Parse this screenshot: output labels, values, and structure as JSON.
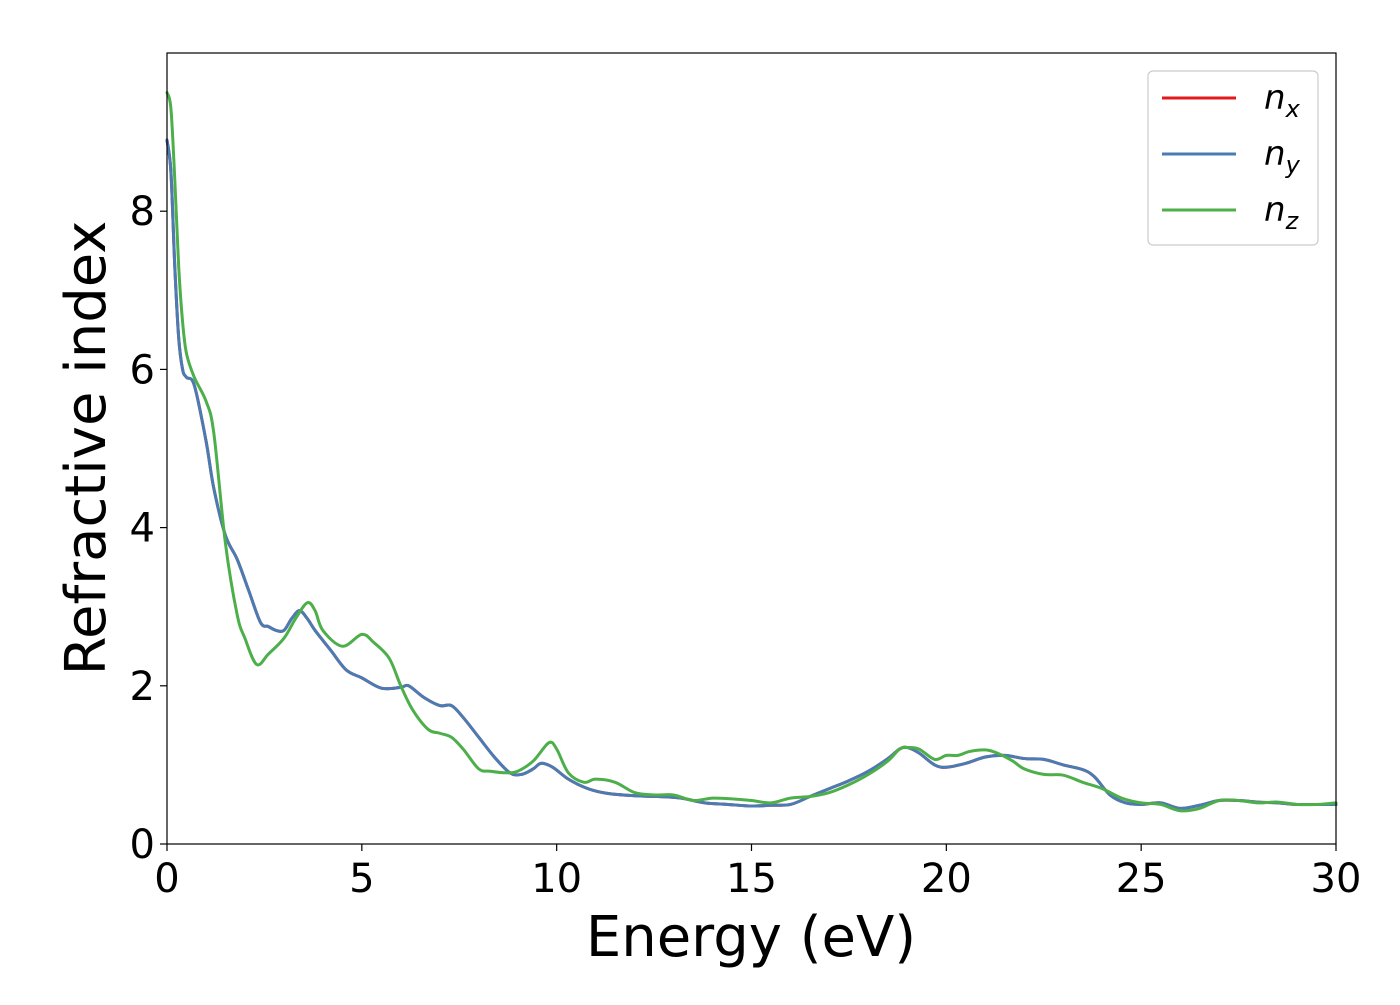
{
  "chart_data": {
    "type": "line",
    "xlabel": "Energy (eV)",
    "ylabel": "Refractive index",
    "xlim": [
      0,
      30
    ],
    "ylim": [
      0,
      10
    ],
    "xticks": [
      0,
      5,
      10,
      15,
      20,
      25,
      30
    ],
    "yticks": [
      0,
      2,
      4,
      6,
      8
    ],
    "grid": false,
    "legend_position": "top-right",
    "series": [
      {
        "name": "n",
        "subscript": "x",
        "color": "#e31a1c",
        "x": [
          0,
          0.1,
          0.2,
          0.3,
          0.4,
          0.5,
          0.7,
          1.0,
          1.2,
          1.5,
          1.8,
          2.1,
          2.4,
          2.6,
          2.8,
          3.0,
          3.2,
          3.4,
          3.6,
          3.8,
          4.2,
          4.6,
          5.0,
          5.5,
          6.0,
          6.2,
          6.6,
          7.0,
          7.3,
          7.6,
          8.0,
          8.4,
          8.8,
          9.1,
          9.4,
          9.6,
          9.9,
          10.3,
          10.8,
          11.3,
          12.0,
          12.6,
          13.2,
          13.8,
          14.4,
          15.0,
          15.5,
          16.0,
          16.5,
          17.0,
          17.5,
          18.0,
          18.5,
          18.8,
          19.0,
          19.3,
          19.7,
          20.0,
          20.5,
          21.0,
          21.5,
          22.0,
          22.5,
          23.0,
          23.5,
          23.8,
          24.2,
          24.6,
          25.0,
          25.5,
          26.0,
          26.5,
          27.0,
          27.5,
          28.0,
          28.5,
          29.0,
          29.5,
          30.0
        ],
        "y": [
          8.9,
          8.5,
          7.3,
          6.4,
          6.0,
          5.9,
          5.8,
          5.1,
          4.5,
          3.9,
          3.6,
          3.2,
          2.8,
          2.75,
          2.7,
          2.7,
          2.85,
          2.95,
          2.85,
          2.7,
          2.45,
          2.2,
          2.1,
          1.97,
          1.98,
          2.0,
          1.85,
          1.75,
          1.75,
          1.6,
          1.35,
          1.1,
          0.9,
          0.88,
          0.95,
          1.02,
          0.97,
          0.82,
          0.7,
          0.64,
          0.61,
          0.6,
          0.58,
          0.52,
          0.5,
          0.48,
          0.49,
          0.5,
          0.6,
          0.7,
          0.8,
          0.92,
          1.08,
          1.2,
          1.22,
          1.15,
          1.0,
          0.97,
          1.02,
          1.1,
          1.12,
          1.08,
          1.07,
          1.0,
          0.94,
          0.85,
          0.62,
          0.52,
          0.5,
          0.52,
          0.45,
          0.49,
          0.55,
          0.55,
          0.53,
          0.52,
          0.5,
          0.5,
          0.5
        ]
      },
      {
        "name": "n",
        "subscript": "y",
        "color": "#4a7cb4",
        "x": [
          0,
          0.1,
          0.2,
          0.3,
          0.4,
          0.5,
          0.7,
          1.0,
          1.2,
          1.5,
          1.8,
          2.1,
          2.4,
          2.6,
          2.8,
          3.0,
          3.2,
          3.4,
          3.6,
          3.8,
          4.2,
          4.6,
          5.0,
          5.5,
          6.0,
          6.2,
          6.6,
          7.0,
          7.3,
          7.6,
          8.0,
          8.4,
          8.8,
          9.1,
          9.4,
          9.6,
          9.9,
          10.3,
          10.8,
          11.3,
          12.0,
          12.6,
          13.2,
          13.8,
          14.4,
          15.0,
          15.5,
          16.0,
          16.5,
          17.0,
          17.5,
          18.0,
          18.5,
          18.8,
          19.0,
          19.3,
          19.7,
          20.0,
          20.5,
          21.0,
          21.5,
          22.0,
          22.5,
          23.0,
          23.5,
          23.8,
          24.2,
          24.6,
          25.0,
          25.5,
          26.0,
          26.5,
          27.0,
          27.5,
          28.0,
          28.5,
          29.0,
          29.5,
          30.0
        ],
        "y": [
          8.9,
          8.5,
          7.3,
          6.4,
          6.0,
          5.9,
          5.8,
          5.1,
          4.5,
          3.9,
          3.6,
          3.2,
          2.8,
          2.75,
          2.7,
          2.7,
          2.85,
          2.95,
          2.85,
          2.7,
          2.45,
          2.2,
          2.1,
          1.97,
          1.98,
          2.0,
          1.85,
          1.75,
          1.75,
          1.6,
          1.35,
          1.1,
          0.9,
          0.88,
          0.95,
          1.02,
          0.97,
          0.82,
          0.7,
          0.64,
          0.61,
          0.6,
          0.58,
          0.52,
          0.5,
          0.48,
          0.49,
          0.5,
          0.6,
          0.7,
          0.8,
          0.92,
          1.08,
          1.2,
          1.22,
          1.15,
          1.0,
          0.97,
          1.02,
          1.1,
          1.12,
          1.08,
          1.07,
          1.0,
          0.94,
          0.85,
          0.62,
          0.52,
          0.5,
          0.52,
          0.45,
          0.49,
          0.55,
          0.55,
          0.53,
          0.52,
          0.5,
          0.5,
          0.5
        ]
      },
      {
        "name": "n",
        "subscript": "z",
        "color": "#4daf4a",
        "x": [
          0,
          0.1,
          0.2,
          0.3,
          0.4,
          0.5,
          0.7,
          1.0,
          1.2,
          1.5,
          1.8,
          2.0,
          2.3,
          2.6,
          3.0,
          3.3,
          3.6,
          3.8,
          4.0,
          4.5,
          5.0,
          5.3,
          5.7,
          6.0,
          6.3,
          6.7,
          7.0,
          7.3,
          7.6,
          8.0,
          8.3,
          8.7,
          9.0,
          9.4,
          9.8,
          10.0,
          10.3,
          10.7,
          11.0,
          11.5,
          12.0,
          12.5,
          13.0,
          13.5,
          14.0,
          14.5,
          15.0,
          15.5,
          16.0,
          16.5,
          17.0,
          17.5,
          18.0,
          18.5,
          18.8,
          19.0,
          19.3,
          19.7,
          20.0,
          20.3,
          20.6,
          21.0,
          21.3,
          21.7,
          22.0,
          22.5,
          23.0,
          23.5,
          24.0,
          24.5,
          25.0,
          25.5,
          26.0,
          26.5,
          27.0,
          27.5,
          28.0,
          28.5,
          29.0,
          29.5,
          30.0
        ],
        "y": [
          9.5,
          9.3,
          8.4,
          7.3,
          6.6,
          6.2,
          5.9,
          5.6,
          5.2,
          3.8,
          2.9,
          2.6,
          2.27,
          2.4,
          2.6,
          2.85,
          3.05,
          2.95,
          2.7,
          2.5,
          2.65,
          2.55,
          2.35,
          2.0,
          1.7,
          1.45,
          1.4,
          1.35,
          1.2,
          0.95,
          0.92,
          0.9,
          0.92,
          1.05,
          1.28,
          1.2,
          0.9,
          0.78,
          0.82,
          0.78,
          0.65,
          0.62,
          0.62,
          0.55,
          0.58,
          0.57,
          0.55,
          0.52,
          0.58,
          0.6,
          0.65,
          0.75,
          0.88,
          1.05,
          1.2,
          1.22,
          1.2,
          1.07,
          1.12,
          1.12,
          1.17,
          1.19,
          1.15,
          1.05,
          0.95,
          0.88,
          0.87,
          0.78,
          0.7,
          0.58,
          0.52,
          0.5,
          0.42,
          0.45,
          0.55,
          0.55,
          0.52,
          0.53,
          0.5,
          0.5,
          0.52
        ]
      }
    ]
  }
}
